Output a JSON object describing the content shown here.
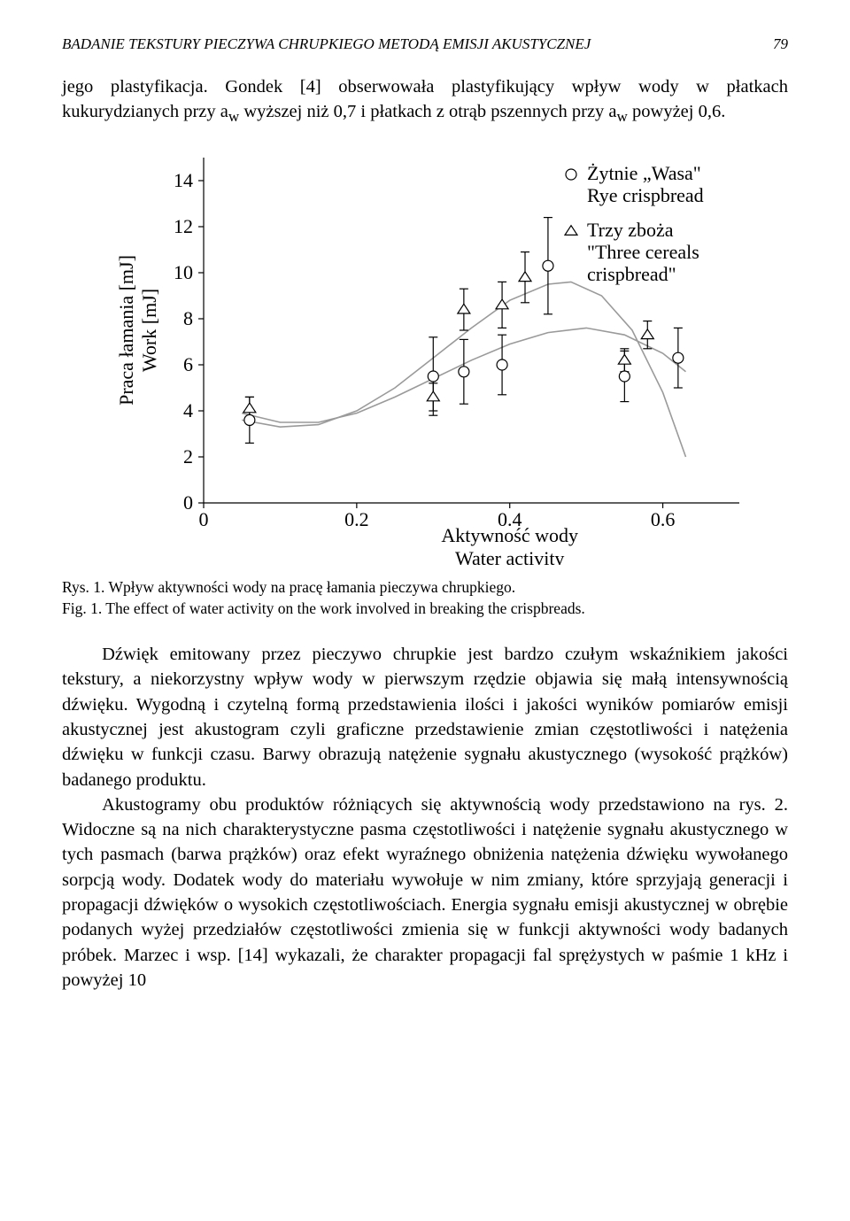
{
  "header": {
    "title": "BADANIE TEKSTURY PIECZYWA CHRUPKIEGO METODĄ EMISJI AKUSTYCZNEJ",
    "page_no": "79"
  },
  "para1": "jego plastyfikacja. Gondek [4] obserwowała plastyfikujący wpływ wody w płatkach kukurydzianych przy aw wyższej niż 0,7 i płatkach z otrąb pszennych przy aw powyżej 0,6.",
  "caption": {
    "pl": "Rys. 1. Wpływ aktywności wody na pracę łamania pieczywa chrupkiego.",
    "en": "Fig. 1. The effect of water activity on the work involved in breaking the crispbreads."
  },
  "para2a": "Dźwięk emitowany przez pieczywo chrupkie jest bardzo czułym wskaźnikiem jakości tekstury, a niekorzystny wpływ wody w pierwszym rzędzie objawia się małą intensywnością dźwięku. Wygodną i czytelną formą przedstawienia ilości i jakości wyników pomiarów emisji akustycznej jest akustogram czyli graficzne przedstawienie zmian częstotliwości i natężenia dźwięku w funkcji czasu. Barwy obrazują natężenie sygnału akustycznego (wysokość prążków) badanego produktu.",
  "para2b": "Akustogramy obu produktów różniących się aktywnością wody przedstawiono na rys. 2. Widoczne są na nich charakterystyczne pasma częstotliwości i natężenie sygnału akustycznego w tych pasmach (barwa prążków) oraz efekt wyraźnego obniżenia natężenia dźwięku wywołanego sorpcją wody. Dodatek wody do materiału wywołuje w nim zmiany, które sprzyjają generacji i propagacji dźwięków o wysokich częstotliwościach. Energia sygnału emisji akustycznej w obrębie podanych wyżej przedziałów częstotliwości zmienia się w funkcji aktywności wody badanych próbek. Marzec i wsp. [14] wykazali, że charakter propagacji fal sprężystych w paśmie 1 kHz i powyżej 10",
  "chart": {
    "type": "scatter-errorbar-curve",
    "background_color": "#ffffff",
    "axis_color": "#000000",
    "curve_color": "#9a9a9a",
    "marker_stroke": "#000000",
    "marker_fill": "#ffffff",
    "error_bar_color": "#000000",
    "line_width": 1.2,
    "curve_width": 1.6,
    "xlim": [
      0,
      0.7
    ],
    "ylim": [
      0,
      15
    ],
    "x_ticks": [
      0,
      0.2,
      0.4,
      0.6
    ],
    "y_ticks": [
      0,
      2,
      4,
      6,
      8,
      10,
      12,
      14
    ],
    "x_label_1": "Aktywność wody",
    "x_label_2": "Water activity",
    "y_label_1": "Praca łamania [mJ]",
    "y_label_2": "Work [mJ]",
    "legend": {
      "series1_symbol": "circle",
      "series1_line1": "Żytnie „Wasa\"",
      "series1_line2": "Rye crispbread",
      "series2_symbol": "triangle",
      "series2_line1": "Trzy zboża",
      "series2_line2": "\"Three cereals",
      "series2_line3": "crispbread\""
    },
    "series_rye": {
      "marker": "circle",
      "points": [
        {
          "x": 0.06,
          "y": 3.6,
          "ey": 1.0
        },
        {
          "x": 0.3,
          "y": 5.5,
          "ey": 1.7
        },
        {
          "x": 0.34,
          "y": 5.7,
          "ey": 1.4
        },
        {
          "x": 0.39,
          "y": 6.0,
          "ey": 1.3
        },
        {
          "x": 0.45,
          "y": 10.3,
          "ey": 2.1
        },
        {
          "x": 0.55,
          "y": 5.5,
          "ey": 1.1
        },
        {
          "x": 0.62,
          "y": 6.3,
          "ey": 1.3
        }
      ],
      "curve": [
        {
          "x": 0.05,
          "y": 3.9
        },
        {
          "x": 0.1,
          "y": 3.5
        },
        {
          "x": 0.15,
          "y": 3.5
        },
        {
          "x": 0.2,
          "y": 3.9
        },
        {
          "x": 0.25,
          "y": 4.6
        },
        {
          "x": 0.3,
          "y": 5.4
        },
        {
          "x": 0.35,
          "y": 6.2
        },
        {
          "x": 0.4,
          "y": 6.9
        },
        {
          "x": 0.45,
          "y": 7.4
        },
        {
          "x": 0.5,
          "y": 7.6
        },
        {
          "x": 0.55,
          "y": 7.3
        },
        {
          "x": 0.6,
          "y": 6.5
        },
        {
          "x": 0.63,
          "y": 5.7
        }
      ]
    },
    "series_three": {
      "marker": "triangle",
      "points": [
        {
          "x": 0.06,
          "y": 4.1,
          "ey": 0.5
        },
        {
          "x": 0.3,
          "y": 4.6,
          "ey": 0.6
        },
        {
          "x": 0.34,
          "y": 8.4,
          "ey": 0.9
        },
        {
          "x": 0.39,
          "y": 8.6,
          "ey": 1.0
        },
        {
          "x": 0.42,
          "y": 9.8,
          "ey": 1.1
        },
        {
          "x": 0.55,
          "y": 6.2,
          "ey": 0.5
        },
        {
          "x": 0.58,
          "y": 7.3,
          "ey": 0.6
        }
      ],
      "curve": [
        {
          "x": 0.05,
          "y": 3.6
        },
        {
          "x": 0.1,
          "y": 3.3
        },
        {
          "x": 0.15,
          "y": 3.4
        },
        {
          "x": 0.2,
          "y": 4.0
        },
        {
          "x": 0.25,
          "y": 5.0
        },
        {
          "x": 0.3,
          "y": 6.3
        },
        {
          "x": 0.35,
          "y": 7.6
        },
        {
          "x": 0.4,
          "y": 8.8
        },
        {
          "x": 0.45,
          "y": 9.5
        },
        {
          "x": 0.48,
          "y": 9.6
        },
        {
          "x": 0.52,
          "y": 9.0
        },
        {
          "x": 0.56,
          "y": 7.5
        },
        {
          "x": 0.6,
          "y": 4.8
        },
        {
          "x": 0.63,
          "y": 2.0
        }
      ]
    }
  }
}
